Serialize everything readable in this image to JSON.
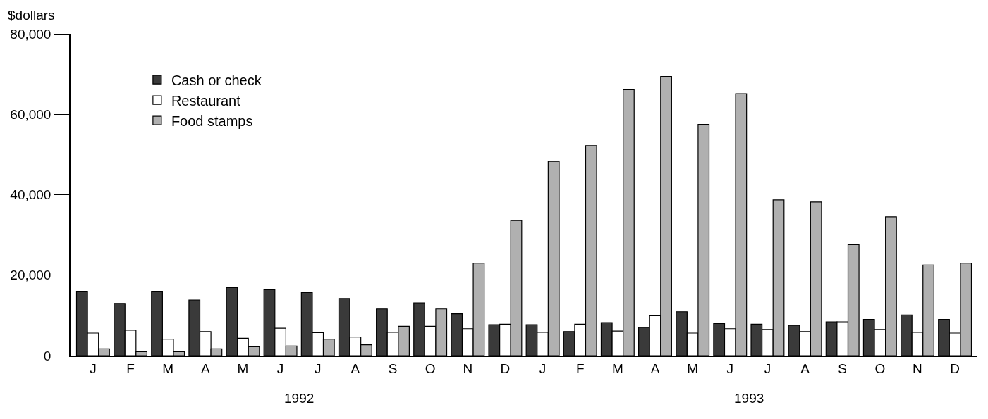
{
  "chart_data": {
    "type": "bar",
    "ylabel": "$dollars",
    "categories": [
      "J",
      "F",
      "M",
      "A",
      "M",
      "J",
      "J",
      "A",
      "S",
      "O",
      "N",
      "D",
      "J",
      "F",
      "M",
      "A",
      "M",
      "J",
      "J",
      "A",
      "S",
      "O",
      "N",
      "D"
    ],
    "series": [
      {
        "name": "Cash or check",
        "color": "#3a3a3a",
        "values": [
          16000,
          13000,
          16000,
          13800,
          16900,
          16400,
          15700,
          14200,
          11600,
          13100,
          10400,
          7700,
          7700,
          6000,
          8200,
          7000,
          10900,
          8000,
          7800,
          7500,
          8400,
          9000,
          10100,
          9000
        ]
      },
      {
        "name": "Restaurant",
        "color": "#ffffff",
        "values": [
          5600,
          6300,
          4100,
          6000,
          4300,
          6800,
          5700,
          4600,
          5800,
          7300,
          6700,
          7800,
          5800,
          7800,
          6100,
          9900,
          5600,
          6700,
          6500,
          6000,
          8400,
          6500,
          5800,
          5600
        ]
      },
      {
        "name": "Food stamps",
        "color": "#b0b0b0",
        "values": [
          1700,
          1000,
          1000,
          1700,
          2200,
          2400,
          4100,
          2700,
          7300,
          11600,
          23000,
          33600,
          48300,
          52200,
          66100,
          69400,
          57500,
          65100,
          38700,
          38200,
          27600,
          34500,
          22500,
          23000
        ]
      }
    ],
    "ylim": [
      0,
      80000
    ],
    "yticks": [
      {
        "value": 0,
        "label": "0"
      },
      {
        "value": 20000,
        "label": "20,000"
      },
      {
        "value": 40000,
        "label": "40,000"
      },
      {
        "value": 60000,
        "label": "60,000"
      },
      {
        "value": 80000,
        "label": "80,000"
      }
    ],
    "annotations": [
      "1992",
      "1993"
    ],
    "legend": "top left"
  }
}
